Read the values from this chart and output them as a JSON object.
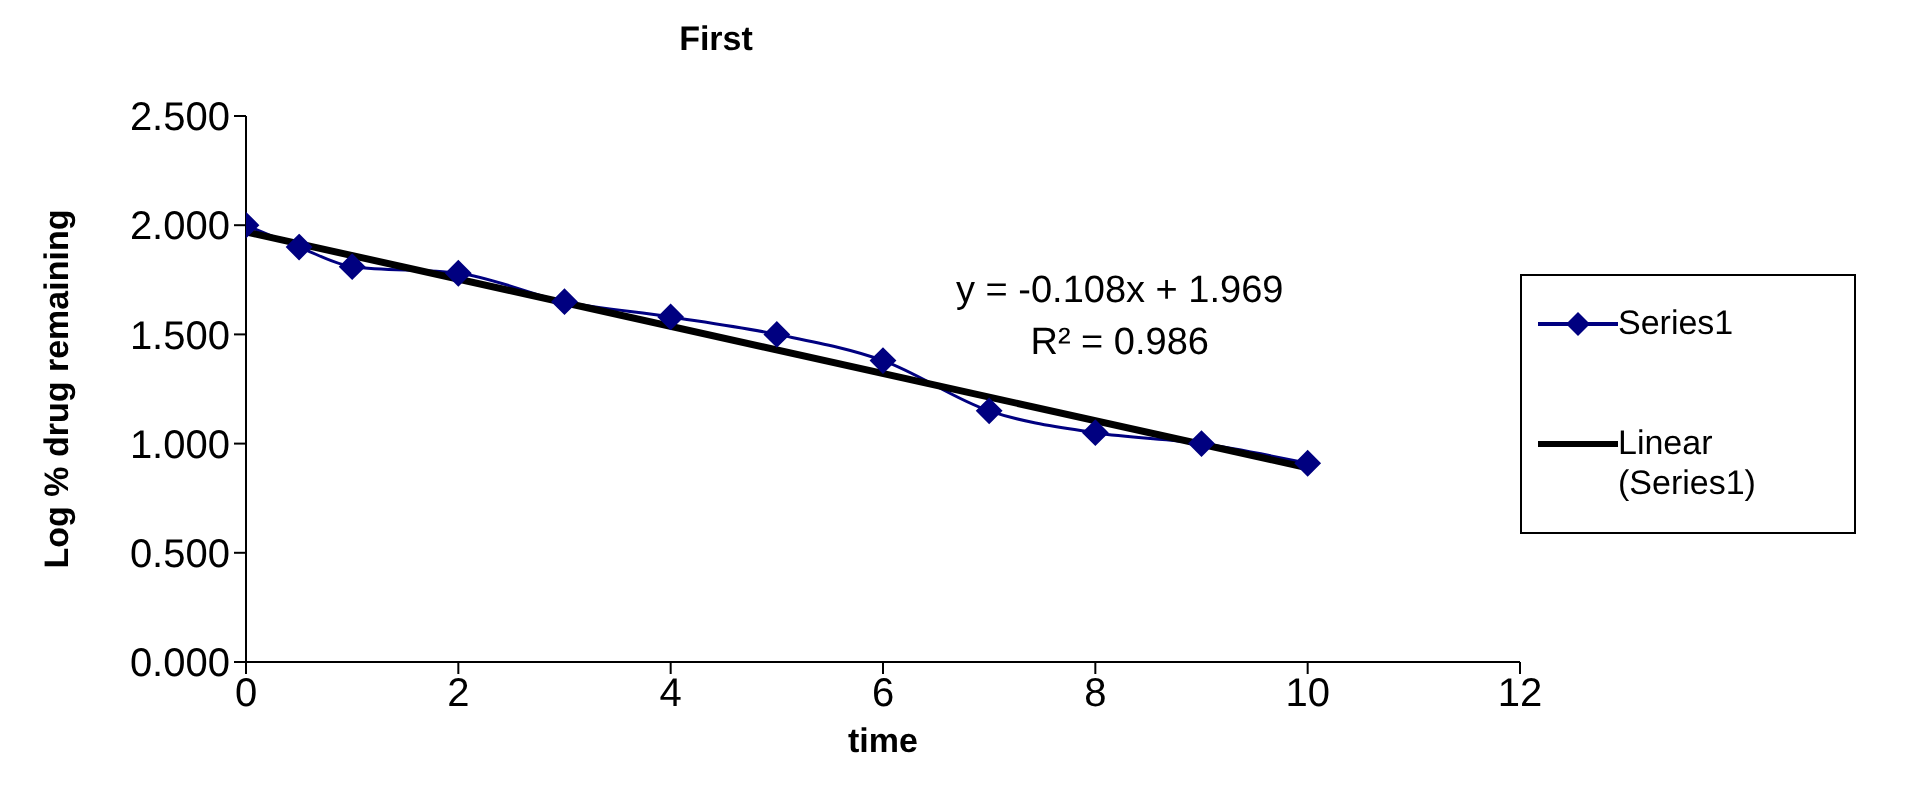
{
  "chart_data": {
    "type": "line",
    "title": "First",
    "xlabel": "time",
    "ylabel": "Log % drug remaining",
    "series": [
      {
        "name": "Series1",
        "color": "#000080",
        "marker": "diamond",
        "x": [
          0,
          0.5,
          1,
          2,
          3,
          4,
          5,
          6,
          7,
          8,
          9,
          10
        ],
        "values": [
          2.0,
          1.9,
          1.81,
          1.78,
          1.65,
          1.58,
          1.5,
          1.38,
          1.15,
          1.05,
          1.0,
          0.91
        ]
      },
      {
        "name": "Linear (Series1)",
        "color": "#000000",
        "marker": "none",
        "x": [
          0,
          10
        ],
        "values": [
          1.969,
          0.889
        ]
      }
    ],
    "xlim": [
      0,
      12
    ],
    "xticks": [
      0,
      2,
      4,
      6,
      8,
      10,
      12
    ],
    "ylim": [
      0,
      2.5
    ],
    "yticks": [
      {
        "value": 0,
        "label": "0.000"
      },
      {
        "value": 0.5,
        "label": "0.500"
      },
      {
        "value": 1,
        "label": "1.000"
      },
      {
        "value": 1.5,
        "label": "1.500"
      },
      {
        "value": 2,
        "label": "2.000"
      },
      {
        "value": 2.5,
        "label": "2.500"
      }
    ],
    "annotations": [
      "y = -0.108x + 1.969",
      "R² = 0.986"
    ],
    "grid": false,
    "legend": "right"
  }
}
